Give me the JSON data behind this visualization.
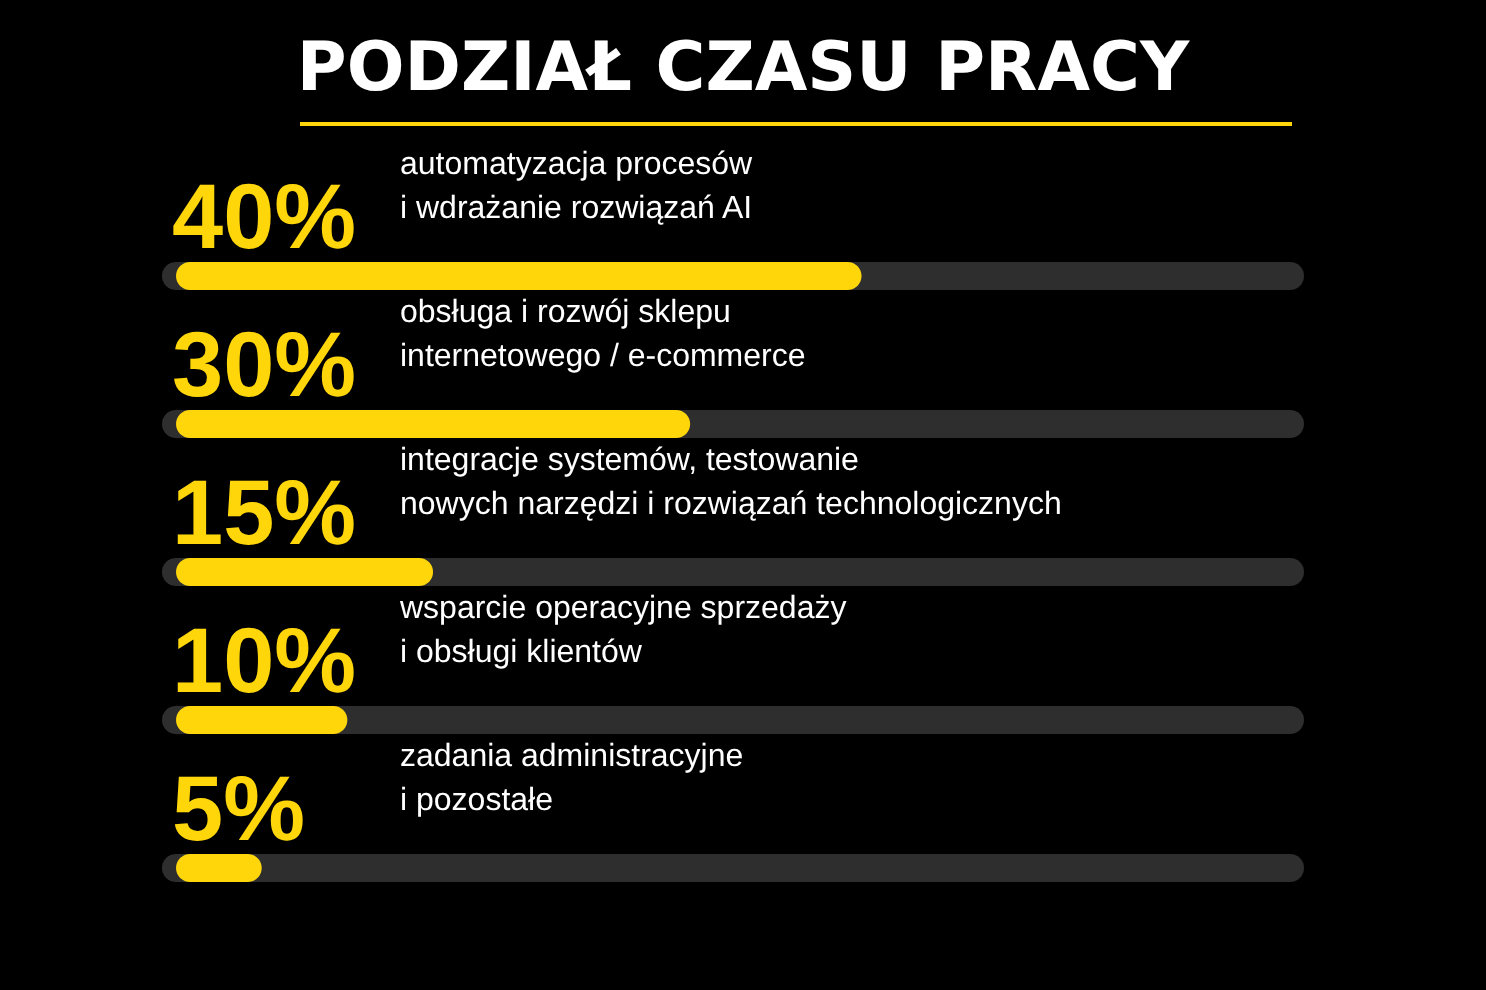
{
  "chart_data": {
    "type": "bar",
    "orientation": "horizontal",
    "title": "PODZIAŁ CZASU PRACY",
    "categories": [
      "automatyzacja procesów\ni wdrażanie rozwiązań AI",
      "obsługa i rozwój sklepu\ninternetowego / e-commerce",
      "integracje systemów, testowanie\nnowych narzędzi i rozwiązań technologicznych",
      "wsparcie operacyjne sprzedaży\ni obsługi klientów",
      "zadania administracyjne\ni pozostałe"
    ],
    "values": [
      40,
      30,
      15,
      10,
      5
    ],
    "value_labels": [
      "40%",
      "30%",
      "15%",
      "10%",
      "5%"
    ],
    "color": "#ffd60a",
    "xlim": [
      0,
      65
    ]
  }
}
